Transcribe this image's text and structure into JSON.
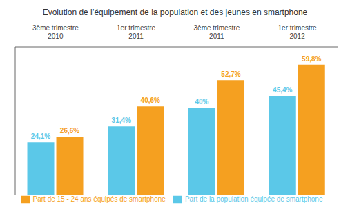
{
  "chart_data": {
    "type": "bar",
    "title": "Evolution de l’équipement de la population et des jeunes en smartphone",
    "categories": [
      "3ème trimestre\n2010",
      "1er trimestre\n2011",
      "3ème trimestre\n2011",
      "1er trimestre\n2012"
    ],
    "series": [
      {
        "name": "Part de la population équipée de smartphone",
        "color": "#5BC8E8",
        "values": [
          24.1,
          31.4,
          40.0,
          45.4
        ],
        "value_labels": [
          "24,1%",
          "31,4%",
          "40%",
          "45,4%"
        ]
      },
      {
        "name": "Part de 15 - 24 ans équipés de smartphone",
        "color": "#F5A020",
        "values": [
          26.6,
          40.6,
          52.7,
          59.8
        ],
        "value_labels": [
          "26,6%",
          "40,6%",
          "52,7%",
          "59,8%"
        ]
      }
    ],
    "ylim": [
      0,
      68
    ],
    "grid": false,
    "legend": "bottom",
    "data_labels": true,
    "tick_labels": "x"
  }
}
